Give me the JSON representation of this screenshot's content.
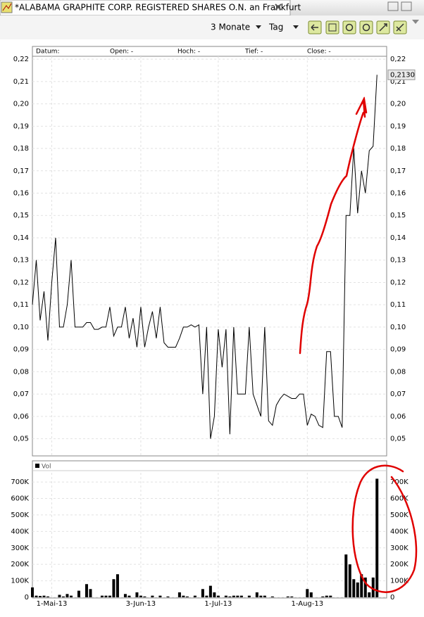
{
  "window": {
    "tab_title": "*ALABAMA GRAPHITE CORP. REGISTERED SHARES O.N. an Frankfurt",
    "period": "3 Monate",
    "interval": "Tag"
  },
  "chart_data": [
    {
      "type": "line",
      "info": [
        "Datum:",
        "Open: -",
        "Hoch: -",
        "Tief: -",
        "Close: -"
      ],
      "last_label": "0,2130",
      "color": "#000000",
      "grid": true,
      "categories": [
        "2013-04-24",
        "2013-04-25",
        "2013-04-26",
        "2013-04-29",
        "2013-04-30",
        "2013-05-01",
        "2013-05-02",
        "2013-05-03",
        "2013-05-06",
        "2013-05-07",
        "2013-05-08",
        "2013-05-09",
        "2013-05-10",
        "2013-05-13",
        "2013-05-14",
        "2013-05-15",
        "2013-05-16",
        "2013-05-17",
        "2013-05-20",
        "2013-05-21",
        "2013-05-22",
        "2013-05-23",
        "2013-05-24",
        "2013-05-27",
        "2013-05-28",
        "2013-05-29",
        "2013-05-30",
        "2013-05-31",
        "2013-06-03",
        "2013-06-04",
        "2013-06-05",
        "2013-06-06",
        "2013-06-07",
        "2013-06-10",
        "2013-06-11",
        "2013-06-12",
        "2013-06-13",
        "2013-06-14",
        "2013-06-17",
        "2013-06-18",
        "2013-06-19",
        "2013-06-20",
        "2013-06-21",
        "2013-06-24",
        "2013-06-25",
        "2013-06-26",
        "2013-06-27",
        "2013-06-28",
        "2013-07-01",
        "2013-07-02",
        "2013-07-03",
        "2013-07-04",
        "2013-07-05",
        "2013-07-08",
        "2013-07-09",
        "2013-07-10",
        "2013-07-11",
        "2013-07-12",
        "2013-07-15",
        "2013-07-16",
        "2013-07-17",
        "2013-07-18",
        "2013-07-19",
        "2013-07-22",
        "2013-07-23",
        "2013-07-24",
        "2013-07-25",
        "2013-07-26",
        "2013-07-29",
        "2013-07-30",
        "2013-07-31",
        "2013-08-01",
        "2013-08-02",
        "2013-08-05",
        "2013-08-06",
        "2013-08-07",
        "2013-08-08",
        "2013-08-09",
        "2013-08-12",
        "2013-08-13",
        "2013-08-14",
        "2013-08-15",
        "2013-08-16",
        "2013-08-19",
        "2013-08-20",
        "2013-08-21",
        "2013-08-22",
        "2013-08-23",
        "2013-08-26",
        "2013-08-27"
      ],
      "values": [
        0.11,
        0.13,
        0.103,
        0.116,
        0.094,
        0.12,
        0.14,
        0.1,
        0.1,
        0.11,
        0.13,
        0.1,
        0.1,
        0.1,
        0.102,
        0.102,
        0.099,
        0.099,
        0.1,
        0.1,
        0.109,
        0.096,
        0.1,
        0.1,
        0.109,
        0.095,
        0.104,
        0.091,
        0.109,
        0.091,
        0.1,
        0.107,
        0.095,
        0.109,
        0.093,
        0.091,
        0.091,
        0.091,
        0.095,
        0.1,
        0.1,
        0.101,
        0.1,
        0.101,
        0.07,
        0.1,
        0.05,
        0.06,
        0.099,
        0.082,
        0.099,
        0.052,
        0.1,
        0.07,
        0.07,
        0.07,
        0.1,
        0.07,
        0.065,
        0.06,
        0.1,
        0.058,
        0.056,
        0.065,
        0.068,
        0.07,
        0.069,
        0.068,
        0.068,
        0.07,
        0.07,
        0.056,
        0.061,
        0.06,
        0.056,
        0.055,
        0.089,
        0.089,
        0.06,
        0.06,
        0.055,
        0.15,
        0.15,
        0.18,
        0.151,
        0.17,
        0.16,
        0.179,
        0.181,
        0.213
      ],
      "xticks": [
        "2013-05-01",
        "2013-06-03",
        "2013-07-01",
        "2013-08-01"
      ],
      "ylim": [
        0.0423,
        0.2213
      ],
      "yticks": [
        {
          "value": 0.05,
          "label": "0,05"
        },
        {
          "value": 0.06,
          "label": "0,06"
        },
        {
          "value": 0.07,
          "label": "0,07"
        },
        {
          "value": 0.08,
          "label": "0,08"
        },
        {
          "value": 0.09,
          "label": "0,09"
        },
        {
          "value": 0.1,
          "label": "0,10"
        },
        {
          "value": 0.11,
          "label": "0,11"
        },
        {
          "value": 0.12,
          "label": "0,12"
        },
        {
          "value": 0.13,
          "label": "0,13"
        },
        {
          "value": 0.14,
          "label": "0,14"
        },
        {
          "value": 0.15,
          "label": "0,15"
        },
        {
          "value": 0.16,
          "label": "0,16"
        },
        {
          "value": 0.17,
          "label": "0,17"
        },
        {
          "value": 0.18,
          "label": "0,18"
        },
        {
          "value": 0.19,
          "label": "0,19"
        },
        {
          "value": 0.2,
          "label": "0,20"
        },
        {
          "value": 0.21,
          "label": "0,21"
        },
        {
          "value": 0.22,
          "label": "0,22"
        }
      ]
    },
    {
      "type": "bar",
      "grid": true,
      "categories": [
        "2013-04-24",
        "2013-04-25",
        "2013-04-26",
        "2013-04-29",
        "2013-04-30",
        "2013-05-01",
        "2013-05-02",
        "2013-05-03",
        "2013-05-06",
        "2013-05-07",
        "2013-05-08",
        "2013-05-09",
        "2013-05-10",
        "2013-05-13",
        "2013-05-14",
        "2013-05-15",
        "2013-05-16",
        "2013-05-17",
        "2013-05-20",
        "2013-05-21",
        "2013-05-22",
        "2013-05-23",
        "2013-05-24",
        "2013-05-27",
        "2013-05-28",
        "2013-05-29",
        "2013-05-30",
        "2013-05-31",
        "2013-06-03",
        "2013-06-04",
        "2013-06-05",
        "2013-06-06",
        "2013-06-07",
        "2013-06-10",
        "2013-06-11",
        "2013-06-12",
        "2013-06-13",
        "2013-06-14",
        "2013-06-17",
        "2013-06-18",
        "2013-06-19",
        "2013-06-20",
        "2013-06-21",
        "2013-06-24",
        "2013-06-25",
        "2013-06-26",
        "2013-06-27",
        "2013-06-28",
        "2013-07-01",
        "2013-07-02",
        "2013-07-03",
        "2013-07-04",
        "2013-07-05",
        "2013-07-08",
        "2013-07-09",
        "2013-07-10",
        "2013-07-11",
        "2013-07-12",
        "2013-07-15",
        "2013-07-16",
        "2013-07-17",
        "2013-07-18",
        "2013-07-19",
        "2013-07-22",
        "2013-07-23",
        "2013-07-24",
        "2013-07-25",
        "2013-07-26",
        "2013-07-29",
        "2013-07-30",
        "2013-07-31",
        "2013-08-01",
        "2013-08-02",
        "2013-08-05",
        "2013-08-06",
        "2013-08-07",
        "2013-08-08",
        "2013-08-09",
        "2013-08-12",
        "2013-08-13",
        "2013-08-14",
        "2013-08-15",
        "2013-08-16",
        "2013-08-19",
        "2013-08-20",
        "2013-08-21",
        "2013-08-22",
        "2013-08-23",
        "2013-08-26",
        "2013-08-27"
      ],
      "series": [
        {
          "name": "Vol",
          "color": "#000000",
          "values": [
            60000,
            10000,
            8000,
            10000,
            5000,
            0,
            0,
            15000,
            5000,
            20000,
            10000,
            0,
            40000,
            0,
            80000,
            50000,
            0,
            0,
            10000,
            10000,
            10000,
            110000,
            140000,
            0,
            20000,
            10000,
            0,
            30000,
            10000,
            5000,
            0,
            10000,
            0,
            10000,
            0,
            5000,
            0,
            0,
            30000,
            10000,
            5000,
            0,
            10000,
            0,
            50000,
            10000,
            70000,
            30000,
            10000,
            0,
            10000,
            5000,
            10000,
            10000,
            10000,
            0,
            10000,
            0,
            30000,
            10000,
            10000,
            0,
            5000,
            0,
            0,
            0,
            5000,
            5000,
            0,
            0,
            0,
            50000,
            30000,
            0,
            0,
            5000,
            10000,
            10000,
            0,
            0,
            0,
            260000,
            200000,
            110000,
            90000,
            140000,
            120000,
            30000,
            120000,
            720000
          ]
        }
      ],
      "xticks": [
        {
          "value": "2013-05-01",
          "label": "1-Mai-13"
        },
        {
          "value": "2013-06-03",
          "label": "3-Jun-13"
        },
        {
          "value": "2013-07-01",
          "label": "1-Jul-13"
        },
        {
          "value": "2013-08-01",
          "label": "1-Aug-13"
        }
      ],
      "ylim": [
        0,
        756000
      ],
      "yticks": [
        0,
        {
          "value": 100000,
          "label": "100K"
        },
        {
          "value": 200000,
          "label": "200K"
        },
        {
          "value": 300000,
          "label": "300K"
        },
        {
          "value": 400000,
          "label": "400K"
        },
        {
          "value": 500000,
          "label": "500K"
        },
        {
          "value": 600000,
          "label": "600K"
        },
        {
          "value": 700000,
          "label": "700K"
        }
      ]
    }
  ]
}
